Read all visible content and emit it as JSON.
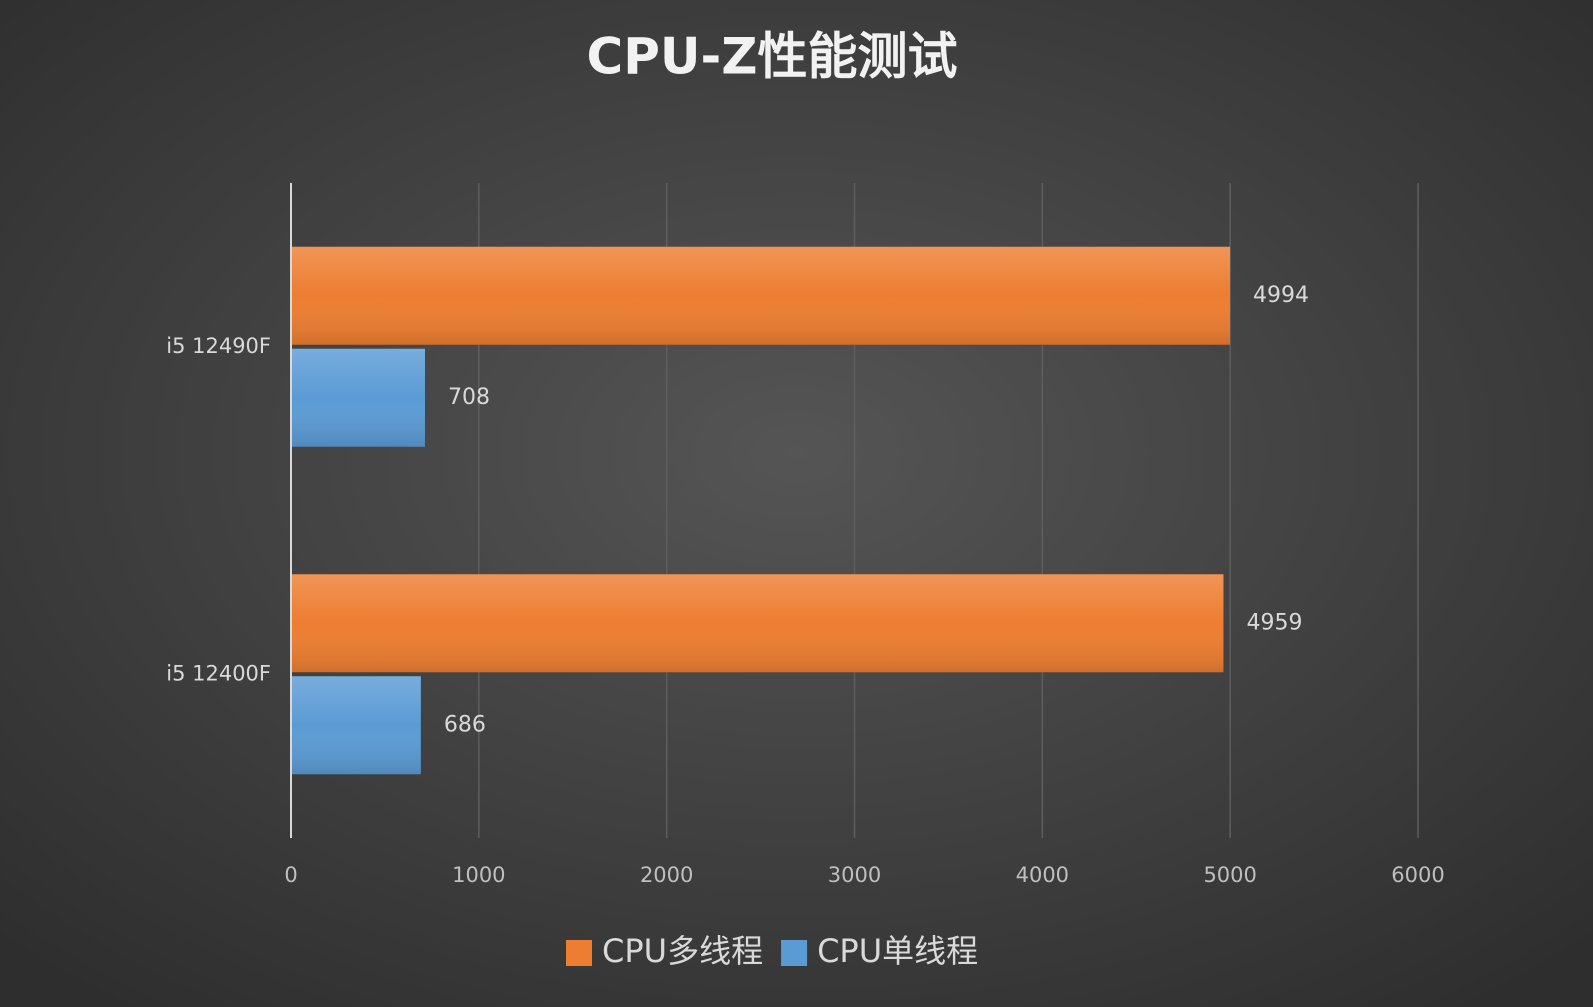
{
  "chart_data": {
    "type": "bar",
    "orientation": "horizontal",
    "title": "CPU-Z性能测试",
    "categories": [
      "i5 12490F",
      "i5 12400F"
    ],
    "series": [
      {
        "name": "CPU多线程",
        "color": "#ed7d31",
        "values": [
          4994,
          4959
        ]
      },
      {
        "name": "CPU单线程",
        "color": "#5b9bd5",
        "values": [
          708,
          686
        ]
      }
    ],
    "xlim": [
      0,
      6000
    ],
    "xticks": [
      0,
      1000,
      2000,
      3000,
      4000,
      5000,
      6000
    ],
    "grid": true,
    "legend": "bottom"
  }
}
